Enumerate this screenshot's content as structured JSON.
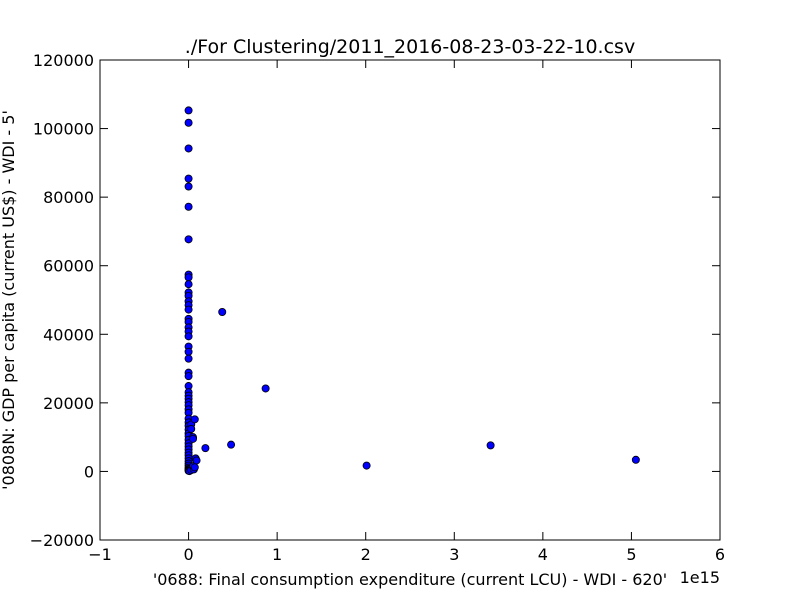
{
  "chart_data": {
    "type": "scatter",
    "title": "./For Clustering/2011_2016-08-23-03-22-10.csv",
    "xlabel": "'0688: Final consumption expenditure  (current LCU) - WDI - 620'",
    "ylabel": "'0808N: GDP per capita  (current US$) - WDI - 5'",
    "x_offset_label": "1e15",
    "x_multiplier": 1000000000000000.0,
    "xlim": [
      -1,
      6
    ],
    "ylim": [
      -20000,
      120000
    ],
    "xticks": [
      -1,
      0,
      1,
      2,
      3,
      4,
      5,
      6
    ],
    "xtick_labels": [
      "−1",
      "0",
      "1",
      "2",
      "3",
      "4",
      "5",
      "6"
    ],
    "yticks": [
      -20000,
      0,
      20000,
      40000,
      60000,
      80000,
      100000,
      120000
    ],
    "ytick_labels": [
      "−20000",
      "0",
      "20000",
      "40000",
      "60000",
      "80000",
      "100000",
      "120000"
    ],
    "grid": false,
    "marker_color": "#0000ff",
    "marker_edge": "#000000",
    "points": [
      [
        0.0,
        105300
      ],
      [
        0.0,
        101700
      ],
      [
        0.0,
        94200
      ],
      [
        0.0,
        85400
      ],
      [
        0.0,
        83100
      ],
      [
        0.0,
        77200
      ],
      [
        0.0,
        67700
      ],
      [
        0.0,
        57400
      ],
      [
        0.0,
        56600
      ],
      [
        0.0,
        54600
      ],
      [
        0.0,
        52200
      ],
      [
        0.0,
        51200
      ],
      [
        0.0,
        49600
      ],
      [
        0.0,
        48500
      ],
      [
        0.0,
        47200
      ],
      [
        0.0,
        44500
      ],
      [
        0.0,
        43600
      ],
      [
        0.0,
        42000
      ],
      [
        0.0,
        40800
      ],
      [
        0.0,
        39400
      ],
      [
        0.0,
        36400
      ],
      [
        0.0,
        34900
      ],
      [
        0.0,
        32900
      ],
      [
        0.0,
        28800
      ],
      [
        0.0,
        27800
      ],
      [
        0.0,
        24900
      ],
      [
        0.0,
        23100
      ],
      [
        0.0,
        22100
      ],
      [
        0.0,
        21200
      ],
      [
        0.0,
        20200
      ],
      [
        0.0,
        19300
      ],
      [
        0.0,
        18100
      ],
      [
        0.0,
        17100
      ],
      [
        0.0,
        15400
      ],
      [
        0.0,
        14300
      ],
      [
        0.0,
        13300
      ],
      [
        0.0,
        12200
      ],
      [
        0.0,
        11100
      ],
      [
        0.0,
        10300
      ],
      [
        0.0,
        9200
      ],
      [
        0.0,
        8200
      ],
      [
        0.0,
        7300
      ],
      [
        0.0,
        6400
      ],
      [
        0.0,
        5500
      ],
      [
        0.0,
        4700
      ],
      [
        0.0,
        3800
      ],
      [
        0.0,
        3000
      ],
      [
        0.0,
        2300
      ],
      [
        0.0,
        1700
      ],
      [
        0.0,
        1100
      ],
      [
        0.0,
        700
      ],
      [
        0.0,
        400
      ],
      [
        0.0,
        200
      ],
      [
        0.01,
        100
      ],
      [
        0.03,
        13700
      ],
      [
        0.03,
        12400
      ],
      [
        0.03,
        900
      ],
      [
        0.03,
        400
      ],
      [
        0.05,
        10000
      ],
      [
        0.05,
        9500
      ],
      [
        0.05,
        1500
      ],
      [
        0.06,
        600
      ],
      [
        0.08,
        3800
      ],
      [
        0.09,
        3200
      ],
      [
        0.07,
        15200
      ],
      [
        0.07,
        1200
      ],
      [
        0.19,
        6800
      ],
      [
        0.38,
        46500
      ],
      [
        0.48,
        7800
      ],
      [
        0.87,
        24200
      ],
      [
        2.01,
        1700
      ],
      [
        3.41,
        7600
      ],
      [
        5.05,
        3400
      ]
    ]
  }
}
